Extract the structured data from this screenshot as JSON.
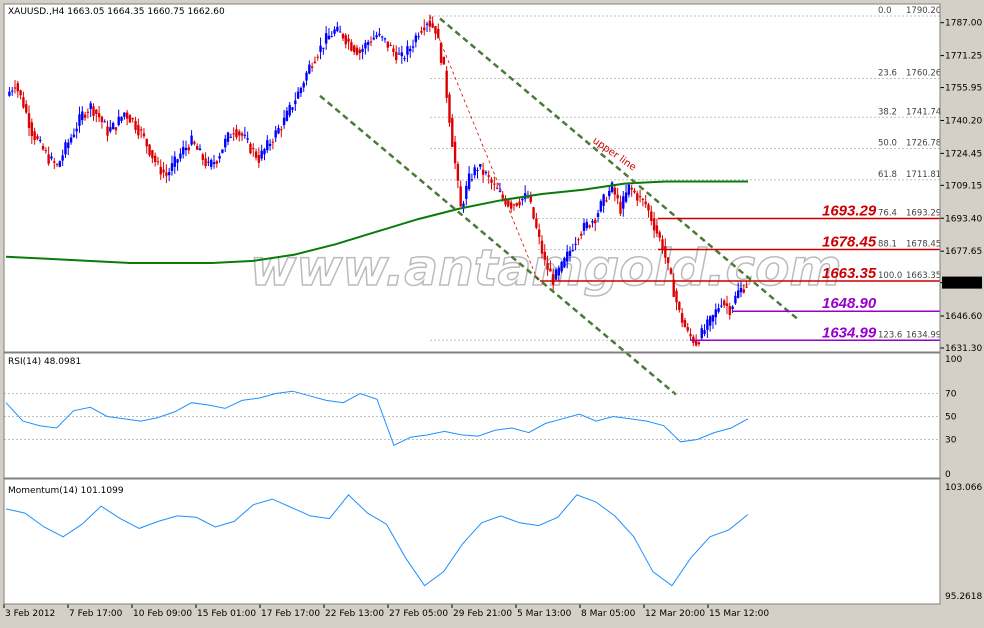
{
  "window": {
    "symbol_header": "XAUUSD.,H4  1663.05 1664.35 1660.75 1662.60",
    "current_price": "1662.60"
  },
  "watermark": "www.antamgold.com",
  "annotation": "upper line",
  "colors": {
    "bull": "#0000ff",
    "bear": "#dd0000",
    "ma": "#0a7a0a",
    "channel": "#4a7a3a",
    "level_red": "#cc0000",
    "level_purple": "#9900cc",
    "indicator": "#1e90ff"
  },
  "chart_data": [
    {
      "type": "candlestick",
      "title": "XAUUSD.,H4",
      "ylim": [
        1628,
        1793
      ],
      "y_ticks": [
        "1787.00",
        "1771.25",
        "1755.95",
        "1740.20",
        "1724.45",
        "1709.15",
        "1693.40",
        "1677.65",
        "1662.60",
        "1646.60",
        "1631.30"
      ],
      "x_ticks": [
        "3 Feb 2012",
        "7 Feb 17:00",
        "10 Feb 09:00",
        "15 Feb 01:00",
        "17 Feb 17:00",
        "22 Feb 13:00",
        "27 Feb 05:00",
        "29 Feb 21:00",
        "5 Mar 13:00",
        "8 Mar 05:00",
        "12 Mar 20:00",
        "15 Mar 12:00"
      ],
      "close_path": [
        1752,
        1758,
        1748,
        1735,
        1728,
        1722,
        1718,
        1727,
        1735,
        1743,
        1747,
        1742,
        1735,
        1738,
        1744,
        1740,
        1734,
        1726,
        1718,
        1714,
        1720,
        1726,
        1730,
        1724,
        1718,
        1722,
        1730,
        1736,
        1733,
        1727,
        1722,
        1728,
        1734,
        1740,
        1748,
        1756,
        1766,
        1773,
        1779,
        1783,
        1781,
        1776,
        1773,
        1778,
        1781,
        1778,
        1773,
        1770,
        1775,
        1783,
        1788,
        1784,
        1764,
        1730,
        1698,
        1712,
        1718,
        1714,
        1708,
        1703,
        1700,
        1702,
        1704,
        1688,
        1672,
        1664,
        1670,
        1678,
        1686,
        1690,
        1694,
        1702,
        1708,
        1698,
        1708,
        1704,
        1700,
        1690,
        1680,
        1664,
        1648,
        1638,
        1634,
        1640,
        1646,
        1654,
        1650,
        1658,
        1662
      ],
      "fibonacci": [
        {
          "ratio": "0.0",
          "price": "1790.20"
        },
        {
          "ratio": "23.6",
          "price": "1760.26"
        },
        {
          "ratio": "38.2",
          "price": "1741.74"
        },
        {
          "ratio": "50.0",
          "price": "1726.78"
        },
        {
          "ratio": "61.8",
          "price": "1711.81"
        },
        {
          "ratio": "76.4",
          "price": "1693.29"
        },
        {
          "ratio": "88.1",
          "price": "1678.45"
        },
        {
          "ratio": "100.0",
          "price": "1663.35"
        },
        {
          "ratio": "123.6",
          "price": "1634.99"
        }
      ],
      "levels": [
        {
          "label": "1693.29",
          "value": 1693.29,
          "style": "red"
        },
        {
          "label": "1678.45",
          "value": 1678.45,
          "style": "red"
        },
        {
          "label": "1663.35",
          "value": 1663.35,
          "style": "red"
        },
        {
          "label": "1648.90",
          "value": 1648.9,
          "style": "purple"
        },
        {
          "label": "1634.99",
          "value": 1634.99,
          "style": "purple"
        }
      ],
      "moving_average": [
        1675,
        1674,
        1673,
        1672,
        1672,
        1672,
        1673,
        1676,
        1681,
        1687,
        1693,
        1698,
        1702,
        1705,
        1707,
        1710,
        1711,
        1711,
        1711
      ]
    },
    {
      "type": "line",
      "title": "RSI(14) 48.0981",
      "ylim": [
        0,
        100
      ],
      "y_ticks": [
        "100",
        "70",
        "50",
        "30",
        "0"
      ],
      "values": [
        62,
        46,
        42,
        40,
        55,
        58,
        50,
        48,
        46,
        49,
        54,
        62,
        60,
        57,
        64,
        66,
        70,
        72,
        68,
        64,
        62,
        70,
        65,
        25,
        32,
        34,
        37,
        34,
        33,
        38,
        40,
        36,
        44,
        48,
        52,
        46,
        50,
        48,
        46,
        42,
        28,
        30,
        36,
        40,
        48
      ]
    },
    {
      "type": "line",
      "title": "Momentum(14) 101.1099",
      "y_ticks": [
        "103.066",
        "95.2618"
      ],
      "values": [
        101.5,
        101.2,
        100.2,
        99.5,
        100.4,
        101.7,
        100.8,
        100.1,
        100.6,
        101.0,
        100.9,
        100.2,
        100.6,
        101.8,
        102.2,
        101.6,
        101.0,
        100.8,
        102.5,
        101.2,
        100.4,
        98.0,
        96.0,
        97.0,
        99.0,
        100.5,
        101.0,
        100.5,
        100.3,
        100.9,
        102.5,
        102.0,
        101.0,
        99.5,
        97.0,
        96.0,
        98.0,
        99.5,
        100.0,
        101.1
      ]
    }
  ]
}
